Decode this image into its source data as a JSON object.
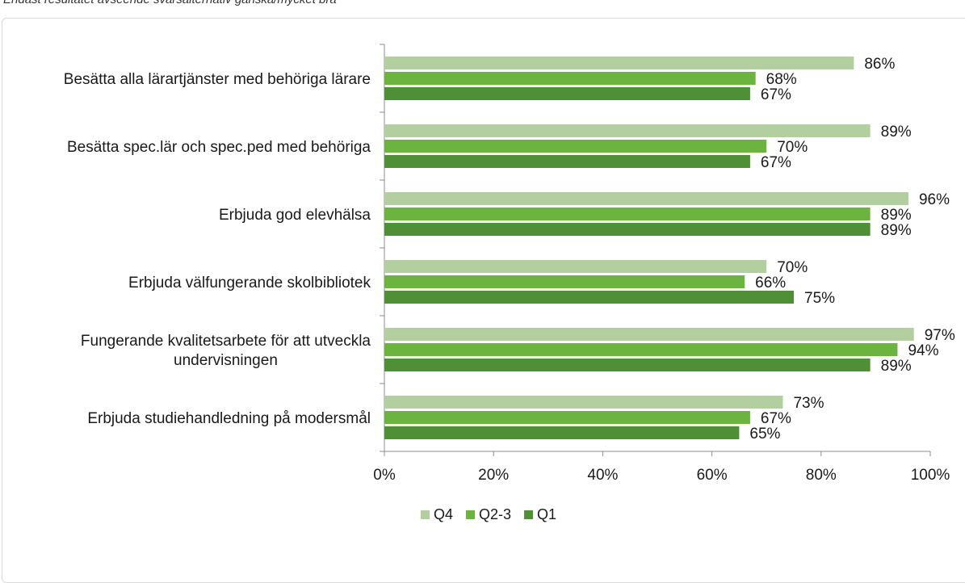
{
  "subtitle": "Endast resultatet avseende svarsalternativ ganska/mycket bra",
  "chart_data": {
    "type": "bar",
    "orientation": "horizontal",
    "title": "",
    "xlabel": "",
    "ylabel": "",
    "xlim": [
      0,
      100
    ],
    "x_ticks": [
      "0%",
      "20%",
      "40%",
      "60%",
      "80%",
      "100%"
    ],
    "categories": [
      [
        "Besätta alla lärartjänster med behöriga lärare"
      ],
      [
        "Besätta spec.lär och spec.ped med behöriga"
      ],
      [
        "Erbjuda god elevhälsa"
      ],
      [
        "Erbjuda välfungerande skolbibliotek"
      ],
      [
        "Fungerande kvalitetsarbete för att utveckla",
        "undervisningen"
      ],
      [
        "Erbjuda studiehandledning på modersmål"
      ]
    ],
    "series": [
      {
        "name": "Q4",
        "color": "#b3cfa0",
        "values": [
          86,
          89,
          96,
          70,
          97,
          73
        ]
      },
      {
        "name": "Q2-3",
        "color": "#6db33f",
        "values": [
          68,
          70,
          89,
          66,
          94,
          67
        ]
      },
      {
        "name": "Q1",
        "color": "#4f8f36",
        "values": [
          67,
          67,
          89,
          75,
          89,
          65
        ]
      }
    ],
    "value_suffix": "%",
    "grid": false,
    "legend_position": "bottom"
  }
}
